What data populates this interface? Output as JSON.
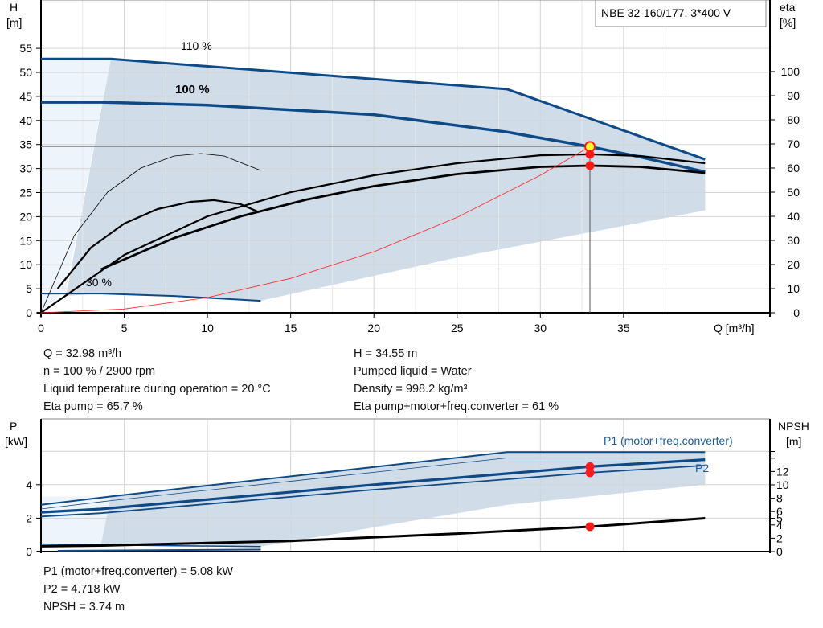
{
  "chart_data": [
    {
      "type": "line",
      "title": "NBE 32-160/177, 3*400 V",
      "xlabel": "Q [m³/h]",
      "ylabel_left": [
        "H",
        "[m]"
      ],
      "ylabel_right": [
        "eta",
        "[%]"
      ],
      "xlim": [
        0,
        40
      ],
      "ylim_left": [
        0,
        60
      ],
      "ylim_right": [
        0,
        120
      ],
      "x_ticks": [
        0,
        5,
        10,
        15,
        20,
        25,
        30,
        35
      ],
      "y_ticks_left": [
        0,
        5,
        10,
        15,
        20,
        25,
        30,
        35,
        40,
        45,
        50,
        55
      ],
      "y_ticks_right": [
        0,
        10,
        20,
        30,
        40,
        50,
        60,
        70,
        80,
        90,
        100
      ],
      "grid": true,
      "curve_labels": [
        "110 %",
        "100 %",
        "30 %"
      ],
      "series": [
        {
          "label_ref": "110 %",
          "axis": "H",
          "color": "#0d4a87",
          "x": [
            0,
            4.2,
            28,
            39.9
          ],
          "y": [
            52.8,
            52.8,
            46.5,
            31.9
          ]
        },
        {
          "label_ref": "100 %",
          "axis": "H",
          "color": "#0d4a87",
          "x": [
            0,
            3.6,
            10,
            20,
            28,
            32.98,
            36,
            39.9
          ],
          "y": [
            43.8,
            43.8,
            43.2,
            41.2,
            37.6,
            34.55,
            32.4,
            29.3
          ]
        },
        {
          "label_ref": "30 %",
          "axis": "H",
          "color": "#0d4a87",
          "x": [
            0,
            3.6,
            8,
            13.2
          ],
          "y": [
            4.0,
            4.0,
            3.5,
            2.5
          ]
        },
        {
          "axis": "eta",
          "color": "#000",
          "x": [
            0,
            5,
            10,
            15,
            20,
            25,
            30,
            33,
            36,
            39.9
          ],
          "y": [
            0,
            24,
            40,
            50,
            57,
            62,
            65.3,
            65.7,
            65,
            62
          ]
        },
        {
          "axis": "eta",
          "color": "#000",
          "x": [
            3.6,
            8,
            12,
            16,
            20,
            25,
            30,
            32.98,
            36,
            39.9
          ],
          "y": [
            18,
            31,
            40,
            47,
            52.5,
            57.5,
            60.5,
            61,
            60.5,
            58
          ]
        },
        {
          "axis": "eta",
          "color": "#000",
          "x": [
            0,
            2,
            4,
            6,
            8,
            9.6,
            11,
            13.2
          ],
          "y": [
            0,
            32,
            50,
            60,
            65,
            66,
            65,
            59
          ]
        },
        {
          "axis": "eta",
          "color": "#000",
          "x": [
            1,
            3,
            5,
            7,
            9,
            10.4,
            12,
            13
          ],
          "y": [
            10,
            27,
            37,
            43,
            46,
            46.7,
            45,
            42
          ]
        },
        {
          "axis": "H",
          "color": "#ff2020",
          "x": [
            0,
            5,
            10,
            15,
            20,
            25,
            30,
            32.98
          ],
          "y": [
            0,
            0.79,
            3.18,
            7.15,
            12.7,
            19.85,
            28.6,
            34.55
          ]
        }
      ],
      "operating_point": {
        "Q": 32.98,
        "H": 34.55,
        "eta_pump": 65.7,
        "eta_total": 61
      }
    },
    {
      "type": "line",
      "xlim": [
        0,
        40
      ],
      "ylabel_left": [
        "P",
        "[kW]"
      ],
      "ylabel_right": [
        "NPSH",
        "[m]"
      ],
      "ylim_left": [
        0,
        6.5
      ],
      "ylim_right": [
        0,
        16
      ],
      "y_ticks_left": [
        0,
        2,
        4
      ],
      "y_ticks_right": [
        0,
        2,
        4,
        5,
        6,
        8,
        10,
        12
      ],
      "grid": true,
      "curve_labels": [
        "P1 (motor+freq.converter)",
        "P2"
      ],
      "series": [
        {
          "axis": "P",
          "color": "#0d4a87",
          "x": [
            0,
            4.2,
            28,
            39.9
          ],
          "y": [
            2.8,
            3.3,
            5.95,
            5.95
          ]
        },
        {
          "axis": "P",
          "color": "#0d4a87",
          "x": [
            0,
            4.2,
            28,
            39.9
          ],
          "y": [
            2.55,
            3.05,
            5.6,
            5.6
          ]
        },
        {
          "label_ref": "P1 (motor+freq.converter)",
          "axis": "P",
          "color": "#0d4a87",
          "x": [
            0,
            3.6,
            20,
            32.98,
            39.9
          ],
          "y": [
            2.35,
            2.55,
            4.0,
            5.08,
            5.5
          ]
        },
        {
          "label_ref": "P2",
          "axis": "P",
          "color": "#0d4a87",
          "x": [
            0,
            3.6,
            20,
            32.98,
            39.9
          ],
          "y": [
            2.1,
            2.3,
            3.7,
            4.718,
            5.15
          ]
        },
        {
          "axis": "P",
          "color": "#0d4a87",
          "x": [
            0,
            3.6,
            13.2
          ],
          "y": [
            0.45,
            0.4,
            0.3
          ]
        },
        {
          "axis": "P",
          "color": "#0d4a87",
          "x": [
            1,
            13.2
          ],
          "y": [
            0.05,
            0.12
          ]
        },
        {
          "axis": "NPSH",
          "color": "#000",
          "x": [
            0,
            3.6,
            15,
            25,
            32.98,
            39.9
          ],
          "y": [
            0.8,
            0.9,
            1.6,
            2.7,
            3.74,
            5.0
          ]
        }
      ],
      "operating_point": {
        "Q": 32.98,
        "P1": 5.08,
        "P2": 4.718,
        "NPSH": 3.74
      }
    }
  ],
  "info_top": {
    "left": [
      "Q = 32.98 m³/h",
      "n = 100 % / 2900 rpm",
      "Liquid temperature during operation = 20 °C",
      "Eta pump = 65.7 %"
    ],
    "right": [
      "H = 34.55 m",
      "Pumped liquid = Water",
      "Density = 998.2 kg/m³",
      "Eta pump+motor+freq.converter = 61 %"
    ]
  },
  "info_bottom": [
    "P1 (motor+freq.converter) = 5.08 kW",
    "P2 = 4.718 kW",
    "NPSH = 3.74 m"
  ],
  "colors": {
    "curve_blue": "#0d4a87",
    "area": "#d0dce8",
    "area_light": "#edf4fb",
    "point": "#ff1a1a",
    "system": "#ff2020"
  }
}
